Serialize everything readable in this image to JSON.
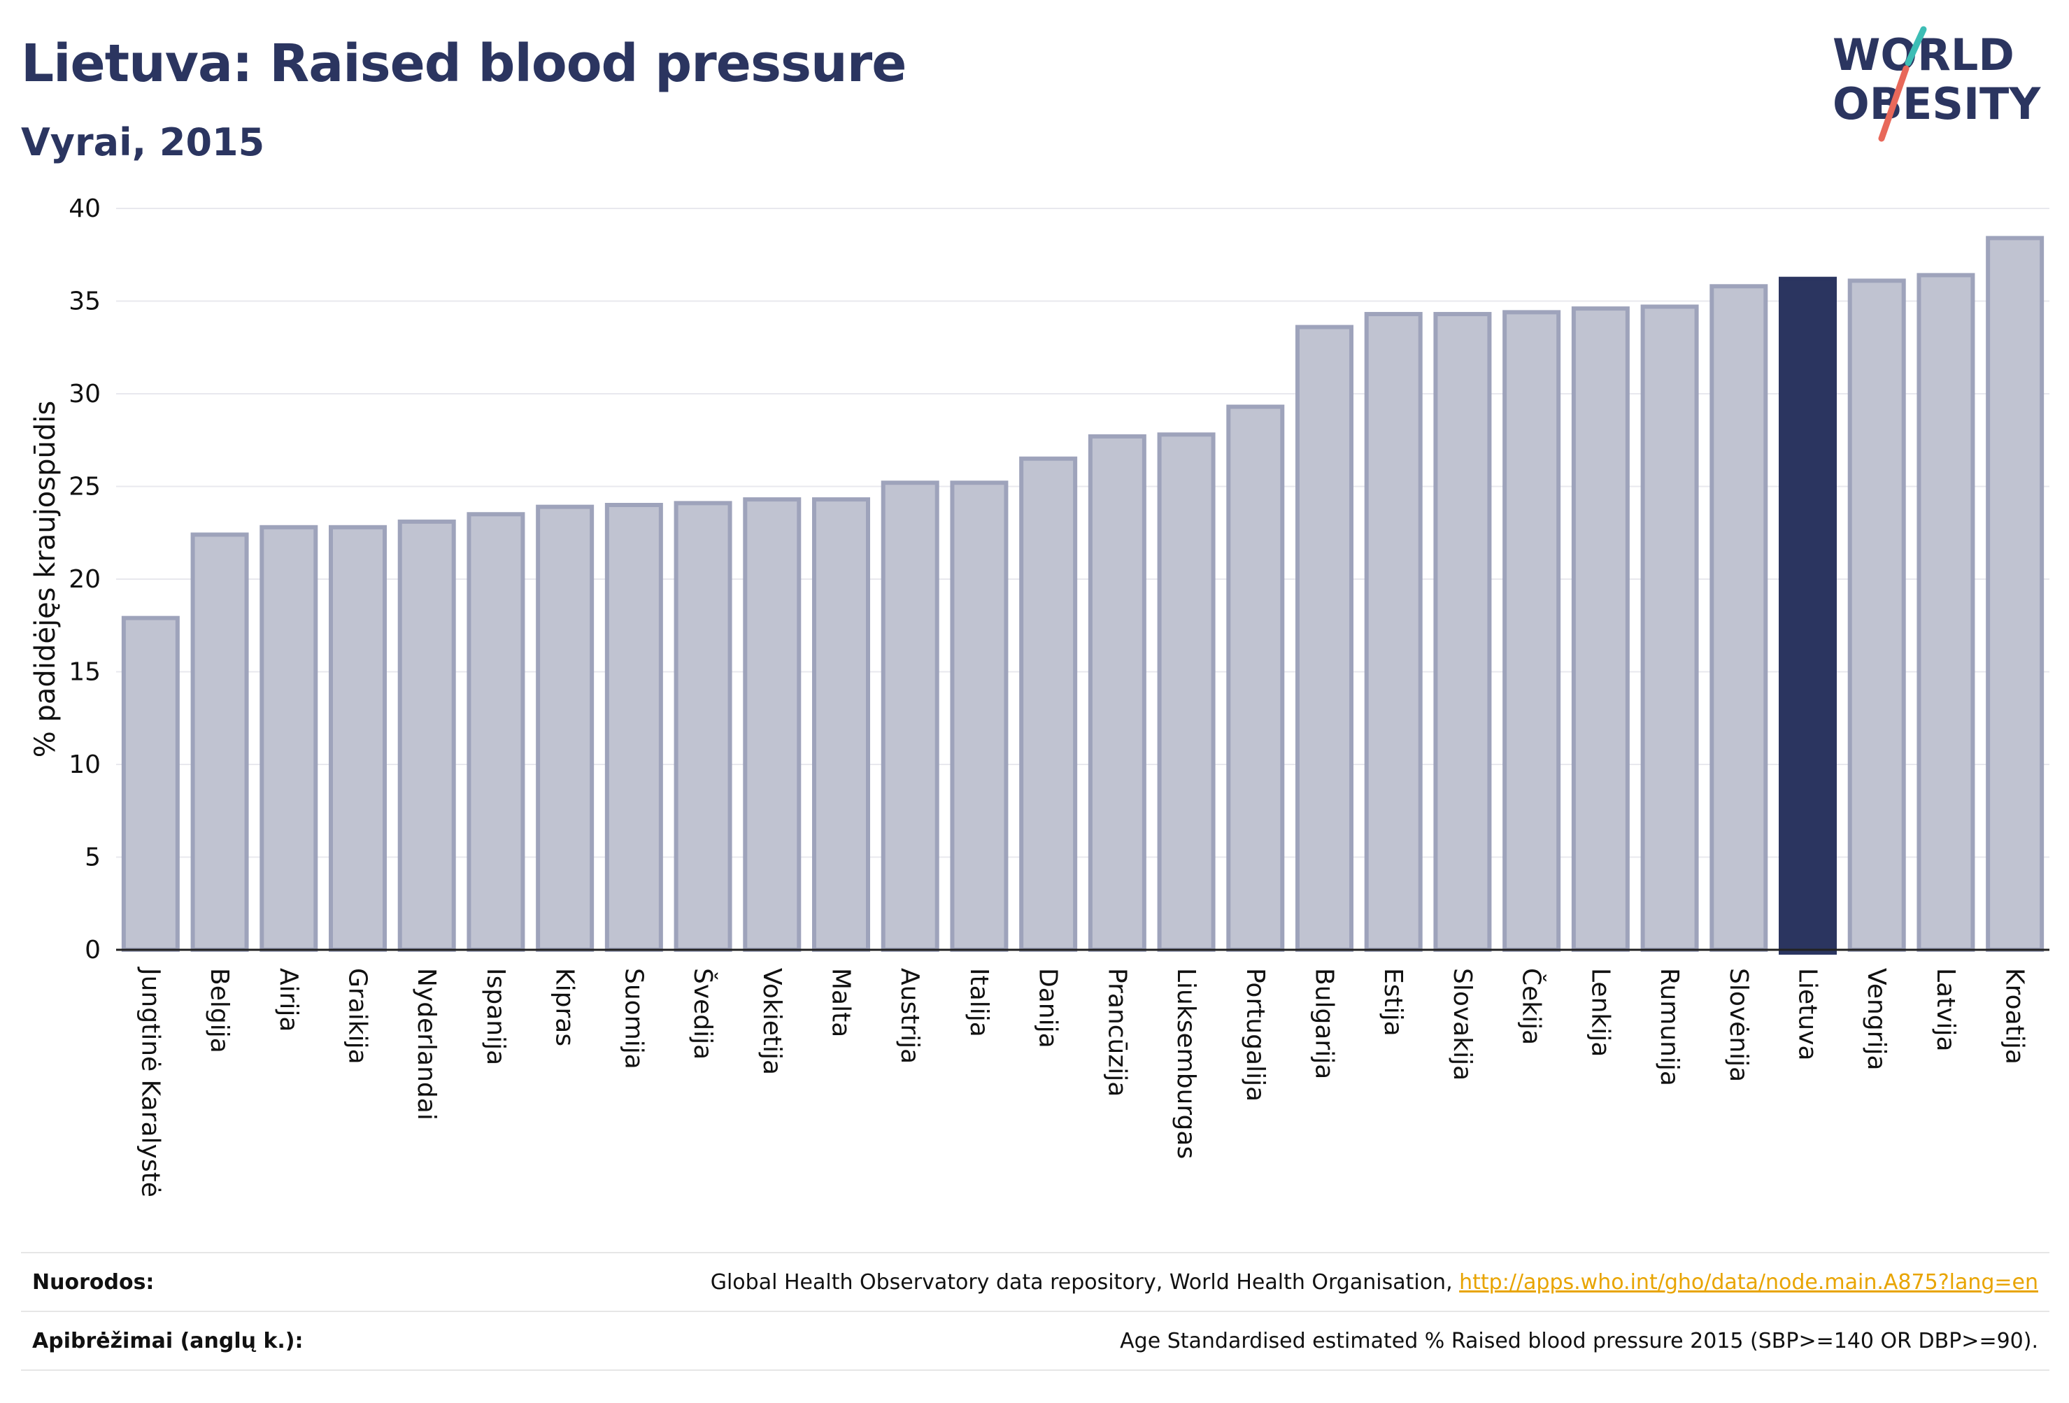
{
  "header": {
    "title": "Lietuva: Raised blood pressure",
    "subtitle": "Vyrai, 2015"
  },
  "logo": {
    "line1": "WORLD",
    "line2": "OBESITY",
    "accent_teal": "#3dbdb5",
    "accent_coral": "#e8685a",
    "text_color": "#2b3560"
  },
  "chart_data": {
    "type": "bar",
    "ylabel": "% padidėjęs kraujospūdis",
    "xlabel": "",
    "ylim": [
      0,
      40
    ],
    "yticks": [
      0,
      5,
      10,
      15,
      20,
      25,
      30,
      35,
      40
    ],
    "grid": true,
    "highlight_category": "Lietuva",
    "colors": {
      "bar_fill": "#c0c3d1",
      "bar_edge": "#9ea3bb",
      "highlight": "#2b3560",
      "grid": "#e8e8ee",
      "axis_text": "#111111"
    },
    "categories": [
      "Jungtinė Karalystė",
      "Belgija",
      "Airija",
      "Graikija",
      "Nyderlandai",
      "Ispanija",
      "Kipras",
      "Suomija",
      "Švedija",
      "Vokietija",
      "Malta",
      "Austrija",
      "Italija",
      "Danija",
      "Prancūzija",
      "Liuksemburgas",
      "Portugalija",
      "Bulgarija",
      "Estija",
      "Slovakija",
      "Čekija",
      "Lenkija",
      "Rumunija",
      "Slovėnija",
      "Lietuva",
      "Vengrija",
      "Latvija",
      "Kroatija"
    ],
    "values": [
      17.9,
      22.4,
      22.8,
      22.8,
      23.1,
      23.5,
      23.9,
      24.0,
      24.1,
      24.3,
      24.3,
      25.2,
      25.2,
      26.5,
      27.7,
      27.8,
      29.3,
      33.6,
      34.3,
      34.3,
      34.4,
      34.6,
      34.7,
      35.8,
      36.2,
      36.1,
      36.4,
      38.4
    ]
  },
  "sources": {
    "references_label": "Nuorodos:",
    "references_text": "Global Health Observatory data repository, World Health Organisation, ",
    "references_link": "http://apps.who.int/gho/data/node.main.A875?lang=en",
    "definitions_label": "Apibrėžimai (anglų k.):",
    "definitions_text": "Age Standardised estimated % Raised blood pressure 2015 (SBP>=140 OR DBP>=90)."
  }
}
